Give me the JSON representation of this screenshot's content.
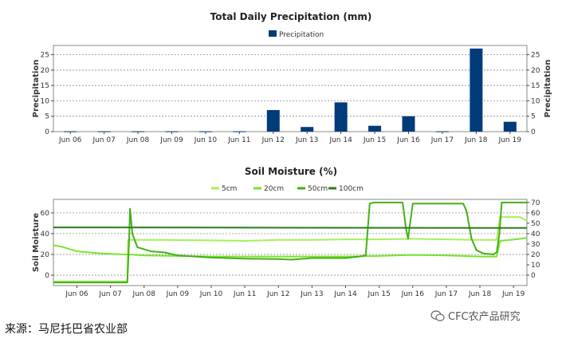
{
  "chart_data": [
    {
      "type": "bar",
      "title": "Total Daily Precipitation (mm)",
      "ylabel": "Precipitation",
      "ylabel_right": "Precipitation",
      "categories": [
        "Jun 06",
        "Jun 07",
        "Jun 08",
        "Jun 09",
        "Jun 10",
        "Jun 11",
        "Jun 12",
        "Jun 13",
        "Jun 14",
        "Jun 15",
        "Jun 16",
        "Jun 17",
        "Jun 18",
        "Jun 19"
      ],
      "series": [
        {
          "name": "Precipitation",
          "color": "#003b7a",
          "values": [
            0.1,
            0.1,
            0.1,
            0.1,
            0.1,
            0.1,
            7.0,
            1.5,
            9.5,
            1.9,
            5.0,
            0.1,
            27.0,
            3.2
          ]
        }
      ],
      "ylim": [
        0,
        28
      ],
      "yticks": [
        0,
        5,
        10,
        15,
        20,
        25
      ],
      "grid": true,
      "legend": "top-center"
    },
    {
      "type": "line",
      "title": "Soil Moisture (%)",
      "ylabel": "Soil Moisture",
      "categories": [
        "Jun 06",
        "Jun 07",
        "Jun 08",
        "Jun 09",
        "Jun 10",
        "Jun 11",
        "Jun 12",
        "Jun 13",
        "Jun 14",
        "Jun 15",
        "Jun 16",
        "Jun 17",
        "Jun 18",
        "Jun 19"
      ],
      "ylim": [
        -10,
        73
      ],
      "yticks_left": [
        0,
        20,
        40,
        60
      ],
      "yticks_right": [
        0,
        10,
        20,
        30,
        40,
        50,
        60,
        70
      ],
      "grid": true,
      "legend": "top-center",
      "series": [
        {
          "name": "5cm",
          "color": "#a6f05a",
          "x": [
            5.3,
            6.5,
            7.1,
            7.5,
            7.52,
            8.5,
            10,
            11,
            12,
            13,
            14,
            15,
            16,
            17,
            18,
            18.5,
            18.6,
            19.2,
            19.4
          ],
          "y": [
            -6,
            -6,
            -6,
            -6,
            34,
            34,
            33.5,
            33,
            34,
            34,
            34.5,
            34.5,
            35,
            34.5,
            34,
            34,
            56,
            56,
            52
          ]
        },
        {
          "name": "20cm",
          "color": "#78e52c",
          "x": [
            5.3,
            5.6,
            6.0,
            6.7,
            7.4,
            7.55,
            8.0,
            9.0,
            10,
            11,
            12,
            13,
            14,
            15,
            16,
            17,
            18,
            18.5,
            18.6,
            19.2,
            19.4
          ],
          "y": [
            29,
            27,
            23,
            21,
            20,
            20,
            19,
            18.5,
            18,
            18,
            18,
            18,
            18,
            18.5,
            19.5,
            19,
            18,
            18,
            33,
            35,
            36
          ]
        },
        {
          "name": "50cm",
          "color": "#45b018",
          "x": [
            5.3,
            7.5,
            7.55,
            7.58,
            7.65,
            7.8,
            8.2,
            8.6,
            9.0,
            10,
            11,
            12,
            12.4,
            13,
            14,
            14.4,
            14.6,
            14.72,
            14.85,
            15.1,
            15.7,
            15.8,
            15.86,
            15.9,
            16.0,
            17,
            17.5,
            17.6,
            17.75,
            17.9,
            18.1,
            18.4,
            18.5,
            18.58,
            18.65,
            19.4
          ],
          "y": [
            -7,
            -7,
            30,
            64,
            40,
            27,
            23,
            22,
            19,
            17,
            16,
            15.5,
            15,
            16.5,
            16.5,
            18,
            19,
            69,
            70,
            70,
            70,
            45,
            35,
            45,
            69,
            69,
            69,
            62,
            35,
            24,
            21,
            20,
            22,
            40,
            70,
            70
          ]
        },
        {
          "name": "100cm",
          "color": "#2a7d1a",
          "x": [
            5.3,
            6.5,
            19.4
          ],
          "y": [
            46,
            46,
            45.5
          ]
        }
      ]
    }
  ],
  "source": "来源：马尼托巴省农业部",
  "watermark": "CFC农产品研究"
}
